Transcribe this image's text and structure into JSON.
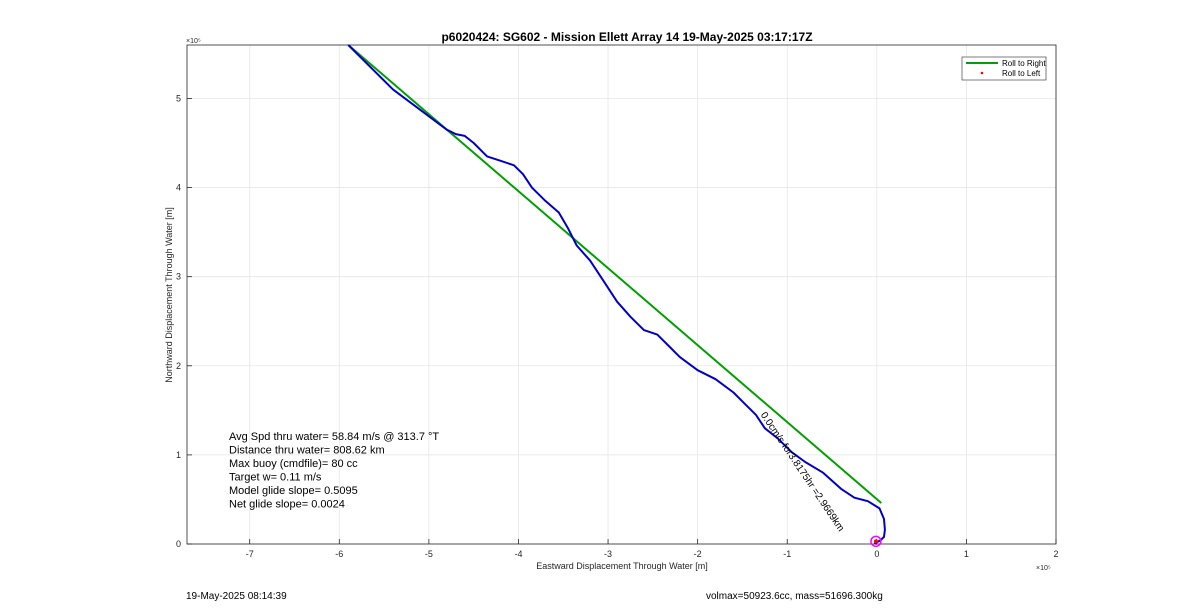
{
  "chart_data": {
    "type": "line",
    "title": "p6020424: SG602 - Mission Ellett Array 14 19-May-2025 03:17:17Z",
    "xlabel": "Eastward Displacement Through Water [m]",
    "ylabel": "Northward Displacement Through Water [m]",
    "x_exponent": "×10⁵",
    "y_exponent": "×10⁵",
    "xlim": [
      -7.7,
      2.0
    ],
    "ylim": [
      0,
      5.6
    ],
    "x_ticks": [
      -7,
      -6,
      -5,
      -4,
      -3,
      -2,
      -1,
      0,
      1,
      2
    ],
    "y_ticks": [
      0,
      1,
      2,
      3,
      4,
      5
    ],
    "grid": true,
    "legend_placement": "top-right",
    "legend": [
      {
        "label": "Roll to Right",
        "color": "#00a000",
        "style": "line"
      },
      {
        "label": "Roll to Left",
        "color": "#ff0000",
        "style": "dot"
      }
    ],
    "series": [
      {
        "name": "Roll to Right",
        "color": "#00a000",
        "x": [
          -5.9,
          0.05
        ],
        "y": [
          5.6,
          0.46
        ]
      },
      {
        "color": "#0000c8",
        "x": [
          -5.9,
          -5.6,
          -5.4,
          -5.2,
          -5.0,
          -4.8,
          -4.7,
          -4.6,
          -4.5,
          -4.4,
          -4.35,
          -4.2,
          -4.05,
          -3.95,
          -3.85,
          -3.7,
          -3.55,
          -3.45,
          -3.35,
          -3.2,
          -3.05,
          -2.9,
          -2.75,
          -2.6,
          -2.45,
          -2.3,
          -2.2,
          -2.0,
          -1.8,
          -1.6,
          -1.5,
          -1.35,
          -1.25,
          -1.1,
          -0.95,
          -0.8,
          -0.6,
          -0.4,
          -0.25,
          -0.1,
          0.03,
          0.08,
          0.09,
          0.08,
          0.04,
          0.0,
          -0.02,
          0.0
        ],
        "y": [
          5.6,
          5.3,
          5.1,
          4.95,
          4.8,
          4.65,
          4.6,
          4.58,
          4.5,
          4.4,
          4.35,
          4.3,
          4.25,
          4.15,
          4.0,
          3.85,
          3.72,
          3.55,
          3.35,
          3.18,
          2.95,
          2.72,
          2.55,
          2.4,
          2.35,
          2.2,
          2.1,
          1.95,
          1.85,
          1.7,
          1.6,
          1.45,
          1.3,
          1.18,
          1.03,
          0.92,
          0.8,
          0.62,
          0.52,
          0.48,
          0.4,
          0.28,
          0.16,
          0.08,
          0.04,
          0.02,
          0.01,
          0.0
        ]
      }
    ],
    "start_marker": {
      "x": -0.01,
      "y": 0.03,
      "color": "#ff00ff"
    },
    "trace_annotation": "0.0cm/s for3.8175hr =2.9669km",
    "annotations": [
      "Avg Spd thru water= 58.84 m/s @ 313.7 °T",
      "Distance thru water= 808.62 km",
      "Max buoy (cmdfile)= 80 cc",
      "Target w= 0.11 m/s",
      "Model glide slope= 0.5095",
      "Net glide slope= 0.0024"
    ],
    "footer_left": "19-May-2025 08:14:39",
    "footer_right": "volmax=50923.6cc, mass=51696.300kg"
  }
}
